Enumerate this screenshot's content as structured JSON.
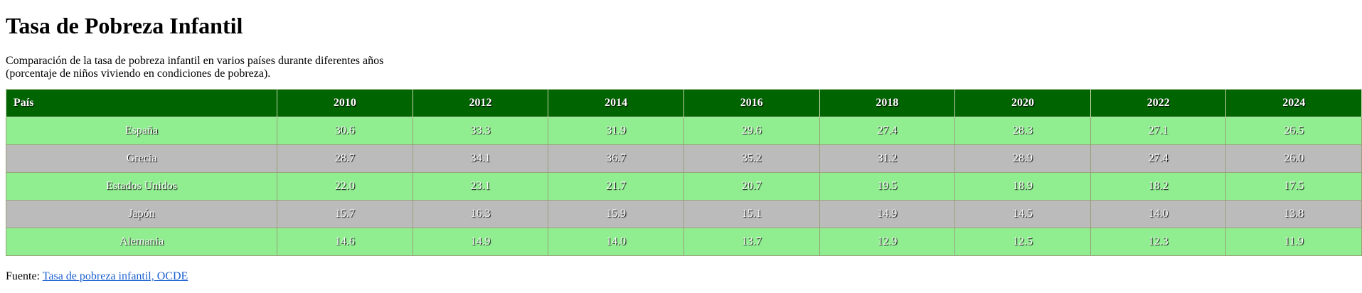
{
  "page": {
    "title": "Tasa de Pobreza Infantil",
    "subtitle": "Comparación de la tasa de pobreza infantil en varios países durante diferentes años (porcentaje de niños viviendo en condiciones de pobreza)."
  },
  "table": {
    "headers": [
      "País",
      "2010",
      "2012",
      "2014",
      "2016",
      "2018",
      "2020",
      "2022",
      "2024"
    ],
    "rows": [
      {
        "country": "España",
        "values": [
          "30.6",
          "33.3",
          "31.9",
          "29.6",
          "27.4",
          "28.3",
          "27.1",
          "26.5"
        ]
      },
      {
        "country": "Grecia",
        "values": [
          "28.7",
          "34.1",
          "36.7",
          "35.2",
          "31.2",
          "28.9",
          "27.4",
          "26.0"
        ]
      },
      {
        "country": "Estados Unidos",
        "values": [
          "22.0",
          "23.1",
          "21.7",
          "20.7",
          "19.5",
          "18.9",
          "18.2",
          "17.5"
        ]
      },
      {
        "country": "Japón",
        "values": [
          "15.7",
          "16.3",
          "15.9",
          "15.1",
          "14.9",
          "14.5",
          "14.0",
          "13.8"
        ]
      },
      {
        "country": "Alemania",
        "values": [
          "14.6",
          "14.9",
          "14.0",
          "13.7",
          "12.9",
          "12.5",
          "12.3",
          "11.9"
        ]
      }
    ],
    "colors": {
      "header_bg": "#006400",
      "row_odd_bg": "#90ee90",
      "row_even_bg": "#bbbbbb"
    }
  },
  "source": {
    "prefix": "Fuente:",
    "link_text": "Tasa de pobreza infantil, OCDE"
  }
}
